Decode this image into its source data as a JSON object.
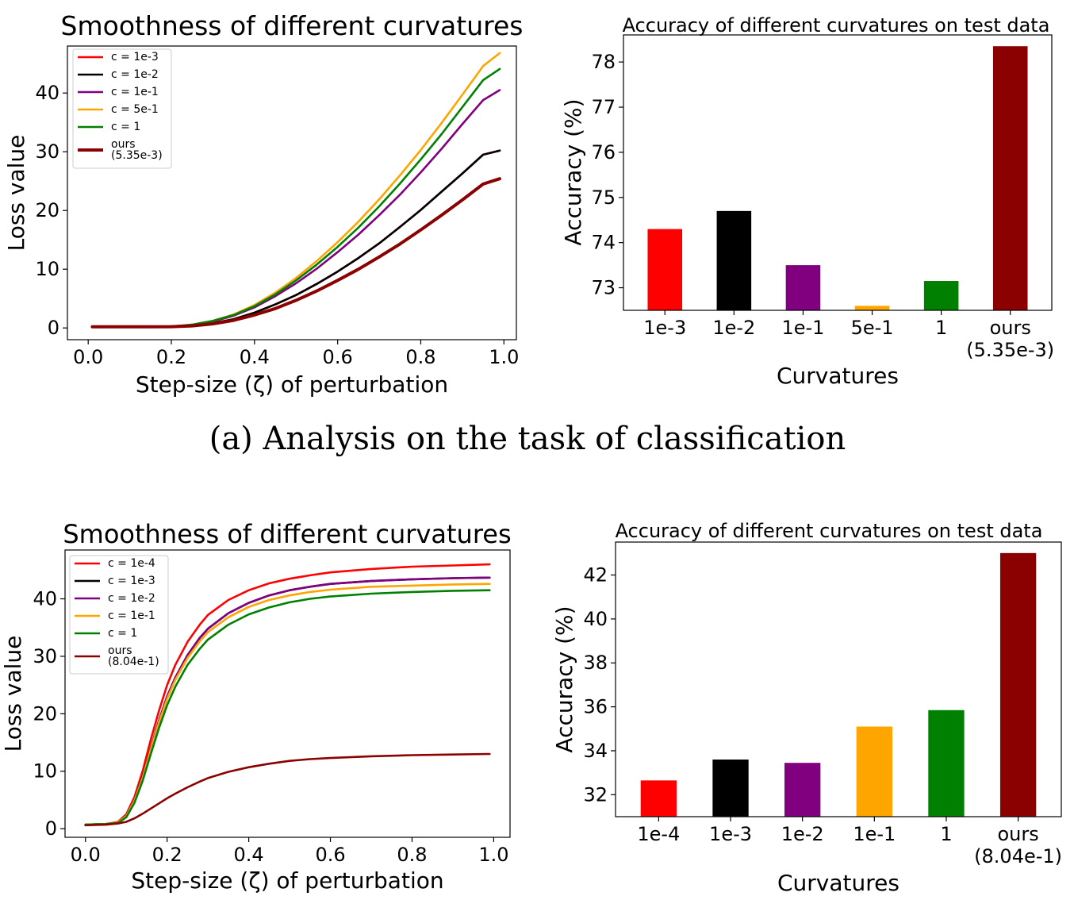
{
  "caption": "(a) Analysis on the task of classification",
  "chart_data": [
    {
      "type": "line",
      "title": "Smoothness of different curvatures",
      "xlabel": "Step-size (ζ) of perturbation",
      "ylabel": "Loss value",
      "xlim": [
        -0.05,
        1.03
      ],
      "ylim": [
        -2,
        48
      ],
      "xticks": [
        "0.0",
        "0.2",
        "0.4",
        "0.6",
        "0.8",
        "1.0"
      ],
      "xtick_values": [
        0,
        0.2,
        0.4,
        0.6,
        0.8,
        1.0
      ],
      "yticks": [
        "0",
        "10",
        "20",
        "30",
        "40"
      ],
      "ytick_values": [
        0,
        10,
        20,
        30,
        40
      ],
      "legend": "top-left",
      "grid": false,
      "x": [
        0.01,
        0.05,
        0.1,
        0.15,
        0.2,
        0.25,
        0.3,
        0.35,
        0.4,
        0.45,
        0.5,
        0.55,
        0.6,
        0.65,
        0.7,
        0.75,
        0.8,
        0.85,
        0.9,
        0.95,
        0.99
      ],
      "series": [
        {
          "name": "c = 1e-3",
          "color": "#ff0000",
          "values": [
            0.2,
            0.2,
            0.2,
            0.2,
            0.25,
            0.4,
            0.8,
            1.5,
            2.6,
            4.0,
            5.6,
            7.5,
            9.6,
            11.9,
            14.4,
            17.2,
            20.1,
            23.2,
            26.3,
            29.5,
            30.2
          ]
        },
        {
          "name": "c = 1e-2",
          "color": "#000000",
          "values": [
            0.2,
            0.2,
            0.2,
            0.2,
            0.25,
            0.4,
            0.8,
            1.5,
            2.6,
            4.0,
            5.6,
            7.5,
            9.6,
            11.9,
            14.4,
            17.2,
            20.1,
            23.2,
            26.3,
            29.5,
            30.2
          ]
        },
        {
          "name": "c = 1e-1",
          "color": "#800080",
          "values": [
            0.2,
            0.2,
            0.2,
            0.2,
            0.25,
            0.5,
            1.1,
            2.1,
            3.5,
            5.4,
            7.6,
            10.1,
            12.9,
            15.9,
            19.2,
            22.7,
            26.5,
            30.5,
            34.7,
            38.8,
            40.5
          ]
        },
        {
          "name": "c = 5e-1",
          "color": "#ffa500",
          "values": [
            0.2,
            0.2,
            0.2,
            0.2,
            0.25,
            0.55,
            1.2,
            2.3,
            3.9,
            6.0,
            8.5,
            11.4,
            14.6,
            18.1,
            21.9,
            26.0,
            30.3,
            34.9,
            39.7,
            44.6,
            46.8
          ]
        },
        {
          "name": "c = 1",
          "color": "#008000",
          "values": [
            0.2,
            0.2,
            0.2,
            0.2,
            0.25,
            0.55,
            1.2,
            2.2,
            3.7,
            5.7,
            8.1,
            10.8,
            13.8,
            17.1,
            20.7,
            24.6,
            28.7,
            33.0,
            37.6,
            42.2,
            44.1
          ]
        },
        {
          "name": "ours\n(5.35e-3)",
          "color": "#8b0000",
          "width": 4,
          "values": [
            0.2,
            0.2,
            0.2,
            0.2,
            0.22,
            0.35,
            0.7,
            1.3,
            2.2,
            3.3,
            4.7,
            6.3,
            8.1,
            10.0,
            12.1,
            14.3,
            16.7,
            19.2,
            21.8,
            24.5,
            25.4
          ]
        }
      ]
    },
    {
      "type": "bar",
      "title": "Accuracy of different curvatures on test data",
      "xlabel": "Curvatures",
      "ylabel": "Accuracy (%)",
      "ylim": [
        72.5,
        78.6
      ],
      "yticks": [
        "73",
        "74",
        "75",
        "76",
        "77",
        "78"
      ],
      "ytick_values": [
        73,
        74,
        75,
        76,
        77,
        78
      ],
      "categories": [
        "1e-3",
        "1e-2",
        "1e-1",
        "5e-1",
        "1",
        "ours\n(5.35e-3)"
      ],
      "values": [
        74.3,
        74.7,
        73.5,
        72.6,
        73.15,
        78.35
      ],
      "colors": [
        "#ff0000",
        "#000000",
        "#800080",
        "#ffa500",
        "#008000",
        "#8b0000"
      ],
      "grid": false
    },
    {
      "type": "line",
      "title": "Smoothness of different curvatures",
      "xlabel": "Step-size (ζ) of perturbation",
      "ylabel": "Loss value",
      "xlim": [
        -0.05,
        1.04
      ],
      "ylim": [
        -1.5,
        48.5
      ],
      "xticks": [
        "0.0",
        "0.2",
        "0.4",
        "0.6",
        "0.8",
        "1.0"
      ],
      "xtick_values": [
        0,
        0.2,
        0.4,
        0.6,
        0.8,
        1.0
      ],
      "yticks": [
        "0",
        "10",
        "20",
        "30",
        "40"
      ],
      "ytick_values": [
        0,
        10,
        20,
        30,
        40
      ],
      "legend": "top-left",
      "grid": false,
      "x": [
        0.0,
        0.05,
        0.08,
        0.1,
        0.12,
        0.14,
        0.16,
        0.18,
        0.2,
        0.22,
        0.25,
        0.28,
        0.3,
        0.35,
        0.4,
        0.45,
        0.5,
        0.55,
        0.6,
        0.7,
        0.8,
        0.9,
        0.99
      ],
      "series": [
        {
          "name": "c = 1e-4",
          "color": "#ff0000",
          "values": [
            0.7,
            0.8,
            1.2,
            2.5,
            5.5,
            10.0,
            15.5,
            20.5,
            25.0,
            28.5,
            32.5,
            35.5,
            37.2,
            39.8,
            41.5,
            42.7,
            43.5,
            44.1,
            44.6,
            45.2,
            45.6,
            45.8,
            46.0
          ]
        },
        {
          "name": "c = 1e-3",
          "color": "#000000",
          "values": [
            0.7,
            0.8,
            1.1,
            2.2,
            5.0,
            9.0,
            14.0,
            18.8,
            23.0,
            26.3,
            30.2,
            33.2,
            34.8,
            37.5,
            39.3,
            40.6,
            41.5,
            42.1,
            42.6,
            43.1,
            43.4,
            43.6,
            43.7
          ]
        },
        {
          "name": "c = 1e-2",
          "color": "#800080",
          "values": [
            0.7,
            0.8,
            1.1,
            2.2,
            5.0,
            9.0,
            14.0,
            18.8,
            23.0,
            26.3,
            30.2,
            33.2,
            34.8,
            37.5,
            39.3,
            40.6,
            41.5,
            42.1,
            42.6,
            43.1,
            43.4,
            43.6,
            43.7
          ]
        },
        {
          "name": "c = 1e-1",
          "color": "#ffa500",
          "values": [
            0.7,
            0.8,
            1.1,
            2.2,
            4.9,
            8.8,
            13.8,
            18.5,
            22.6,
            25.9,
            29.7,
            32.6,
            34.2,
            36.8,
            38.6,
            39.8,
            40.6,
            41.2,
            41.6,
            42.1,
            42.3,
            42.5,
            42.6
          ]
        },
        {
          "name": "c = 1",
          "color": "#008000",
          "values": [
            0.7,
            0.8,
            1.0,
            2.0,
            4.5,
            8.3,
            13.0,
            17.5,
            21.5,
            24.7,
            28.5,
            31.3,
            32.9,
            35.5,
            37.3,
            38.5,
            39.4,
            40.0,
            40.4,
            40.9,
            41.2,
            41.4,
            41.5
          ]
        },
        {
          "name": "ours\n(8.04e-1)",
          "color": "#8b0000",
          "values": [
            0.6,
            0.7,
            0.9,
            1.2,
            1.8,
            2.6,
            3.5,
            4.4,
            5.3,
            6.1,
            7.2,
            8.2,
            8.8,
            9.9,
            10.7,
            11.3,
            11.8,
            12.1,
            12.3,
            12.6,
            12.8,
            12.9,
            13.0
          ]
        }
      ]
    },
    {
      "type": "bar",
      "title": "Accuracy of different curvatures  on test data",
      "xlabel": "Curvatures",
      "ylabel": "Accuracy (%)",
      "ylim": [
        31.0,
        43.5
      ],
      "yticks": [
        "32",
        "34",
        "36",
        "38",
        "40",
        "42"
      ],
      "ytick_values": [
        32,
        34,
        36,
        38,
        40,
        42
      ],
      "categories": [
        "1e-4",
        "1e-3",
        "1e-2",
        "1e-1",
        "1",
        "ours\n(8.04e-1)"
      ],
      "values": [
        32.65,
        33.6,
        33.45,
        35.1,
        35.85,
        43.0
      ],
      "colors": [
        "#ff0000",
        "#000000",
        "#800080",
        "#ffa500",
        "#008000",
        "#8b0000"
      ],
      "grid": false
    }
  ]
}
